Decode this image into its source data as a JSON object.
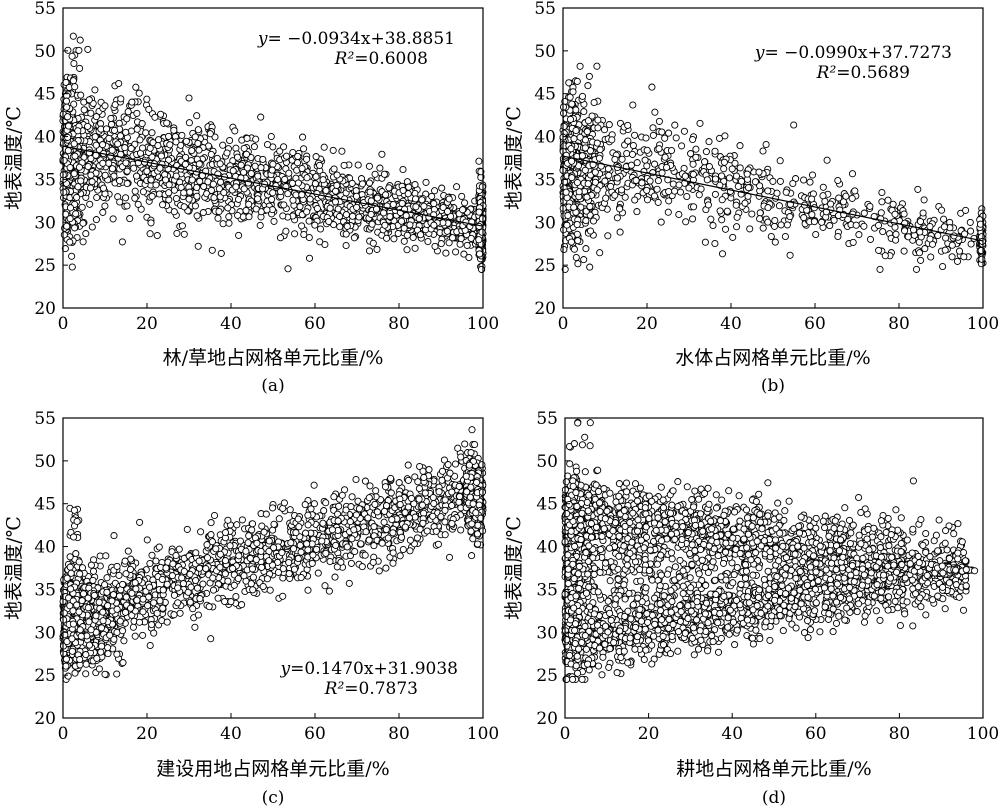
{
  "chart_data": [
    {
      "type": "scatter",
      "panel_label": "(a)",
      "xlabel": "林/草地占网格单元比重/%",
      "ylabel": "地表温度/℃",
      "xlim": [
        0,
        100
      ],
      "ylim": [
        20,
        55
      ],
      "xticks": [
        0,
        20,
        40,
        60,
        80,
        100
      ],
      "yticks": [
        20,
        25,
        30,
        35,
        40,
        45,
        50,
        55
      ],
      "equation": {
        "prefix": "y",
        "body": "= −0.0934x+38.8851",
        "r2_label": "R²",
        "r2_value": "=0.6008"
      },
      "trend": {
        "slope": -0.0934,
        "intercept": 38.8851
      },
      "pattern": "forest"
    },
    {
      "type": "scatter",
      "panel_label": "(b)",
      "xlabel": "水体占网格单元比重/%",
      "ylabel": "地表温度/℃",
      "xlim": [
        0,
        100
      ],
      "ylim": [
        20,
        55
      ],
      "xticks": [
        0,
        20,
        40,
        60,
        80,
        100
      ],
      "yticks": [
        20,
        25,
        30,
        35,
        40,
        45,
        50,
        55
      ],
      "equation": {
        "prefix": "y",
        "body": "= −0.0990x+37.7273",
        "r2_label": "R²",
        "r2_value": "=0.5689"
      },
      "trend": {
        "slope": -0.099,
        "intercept": 37.7273
      },
      "pattern": "water"
    },
    {
      "type": "scatter",
      "panel_label": "(c)",
      "xlabel": "建设用地占网格单元比重/%",
      "ylabel": "地表温度/℃",
      "xlim": [
        0,
        100
      ],
      "ylim": [
        20,
        55
      ],
      "xticks": [
        0,
        20,
        40,
        60,
        80,
        100
      ],
      "yticks": [
        20,
        25,
        30,
        35,
        40,
        45,
        50,
        55
      ],
      "equation": {
        "prefix": "y",
        "body": "=0.1470x+31.9038",
        "r2_label": "R²",
        "r2_value": "=0.7873"
      },
      "trend": null,
      "pattern": "built"
    },
    {
      "type": "scatter",
      "panel_label": "(d)",
      "xlabel": "耕地占网格单元比重/%",
      "ylabel": "地表温度/℃",
      "xlim": [
        0,
        100
      ],
      "ylim": [
        20,
        55
      ],
      "xticks": [
        0,
        20,
        40,
        60,
        80,
        100
      ],
      "yticks": [
        20,
        25,
        30,
        35,
        40,
        45,
        50,
        55
      ],
      "equation": null,
      "trend": null,
      "pattern": "cropland"
    }
  ]
}
